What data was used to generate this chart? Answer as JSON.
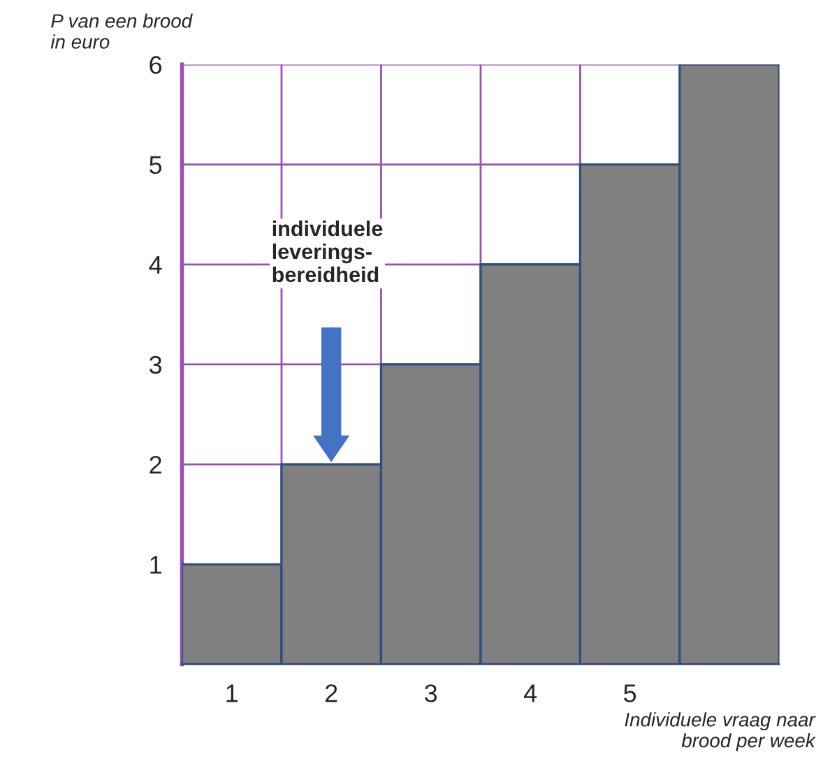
{
  "chart_data": {
    "type": "bar",
    "categories": [
      "1",
      "2",
      "3",
      "4",
      "5",
      null
    ],
    "values": [
      1,
      2,
      3,
      4,
      5,
      6
    ],
    "color": "#808080",
    "ylim": [
      0,
      6
    ],
    "yticks": [
      1,
      2,
      3,
      4,
      5,
      6
    ],
    "ylabel": "P van een brood\nin euro",
    "xlabel": "Individuele vraag naar\nbrood per week",
    "annotations": [
      "individuele\nleverings-\nbereidheid"
    ],
    "grid": true
  }
}
